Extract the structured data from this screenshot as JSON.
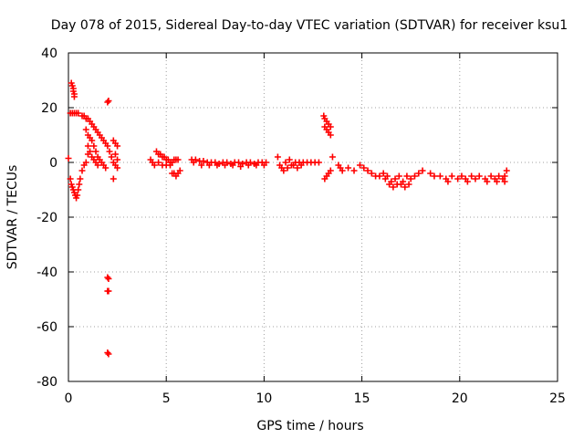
{
  "chart_data": {
    "type": "scatter",
    "title": "Day 078 of 2015, Sidereal Day-to-day VTEC variation (SDTVAR) for receiver ksu1",
    "xlabel": "GPS time / hours",
    "ylabel": "SDTVAR / TECUs",
    "xlim": [
      0,
      25
    ],
    "ylim": [
      -80,
      40
    ],
    "xticks": [
      "0",
      "5",
      "10",
      "15",
      "20",
      "25"
    ],
    "yticks": [
      "40",
      "20",
      "0",
      "-20",
      "-40",
      "-60",
      "-80"
    ],
    "grid": true,
    "marker": "+",
    "color": "#ff0000",
    "series": [
      {
        "name": "SDTVAR",
        "points": [
          [
            0.0,
            1.5
          ],
          [
            0.1,
            18
          ],
          [
            0.2,
            18
          ],
          [
            0.3,
            18
          ],
          [
            0.4,
            18
          ],
          [
            0.5,
            18
          ],
          [
            0.15,
            29
          ],
          [
            0.2,
            28
          ],
          [
            0.25,
            27
          ],
          [
            0.25,
            26
          ],
          [
            0.3,
            25
          ],
          [
            0.3,
            24
          ],
          [
            0.1,
            -6
          ],
          [
            0.15,
            -8
          ],
          [
            0.2,
            -9
          ],
          [
            0.25,
            -10
          ],
          [
            0.3,
            -11
          ],
          [
            0.35,
            -12
          ],
          [
            0.4,
            -13
          ],
          [
            0.45,
            -12
          ],
          [
            0.5,
            -10
          ],
          [
            0.55,
            -8
          ],
          [
            0.6,
            -6
          ],
          [
            0.7,
            -3
          ],
          [
            0.8,
            -1
          ],
          [
            0.9,
            0
          ],
          [
            1.0,
            3
          ],
          [
            0.7,
            17
          ],
          [
            0.8,
            17
          ],
          [
            0.9,
            16
          ],
          [
            1.0,
            16
          ],
          [
            1.1,
            15
          ],
          [
            1.2,
            14
          ],
          [
            1.3,
            13
          ],
          [
            1.4,
            12
          ],
          [
            1.5,
            11
          ],
          [
            1.6,
            10
          ],
          [
            1.7,
            9
          ],
          [
            1.8,
            8
          ],
          [
            1.9,
            7
          ],
          [
            2.0,
            6
          ],
          [
            0.9,
            12
          ],
          [
            1.0,
            10
          ],
          [
            1.1,
            9
          ],
          [
            1.2,
            8
          ],
          [
            1.3,
            6
          ],
          [
            1.4,
            4
          ],
          [
            1.5,
            2
          ],
          [
            1.6,
            1
          ],
          [
            1.7,
            0
          ],
          [
            1.8,
            -1
          ],
          [
            1.9,
            -2
          ],
          [
            1.0,
            6
          ],
          [
            1.1,
            4
          ],
          [
            1.2,
            2
          ],
          [
            1.3,
            1
          ],
          [
            1.4,
            0
          ],
          [
            1.5,
            -1
          ],
          [
            2.0,
            22
          ],
          [
            2.05,
            22.5
          ],
          [
            2.0,
            -42
          ],
          [
            2.05,
            -42.5
          ],
          [
            2.0,
            -47
          ],
          [
            2.05,
            -47
          ],
          [
            2.0,
            -69.5
          ],
          [
            2.05,
            -70
          ],
          [
            2.1,
            4
          ],
          [
            2.2,
            2
          ],
          [
            2.3,
            0
          ],
          [
            2.4,
            -1
          ],
          [
            2.5,
            -2
          ],
          [
            2.3,
            8
          ],
          [
            2.4,
            7
          ],
          [
            2.5,
            6
          ],
          [
            2.4,
            3
          ],
          [
            2.5,
            1
          ],
          [
            2.3,
            -6
          ],
          [
            4.2,
            1
          ],
          [
            4.3,
            0
          ],
          [
            4.4,
            -1
          ],
          [
            4.5,
            4
          ],
          [
            4.6,
            3
          ],
          [
            4.7,
            3
          ],
          [
            4.8,
            2
          ],
          [
            4.9,
            2
          ],
          [
            5.0,
            1
          ],
          [
            5.1,
            1
          ],
          [
            5.2,
            0
          ],
          [
            5.3,
            0
          ],
          [
            5.4,
            1
          ],
          [
            5.5,
            1
          ],
          [
            5.6,
            1
          ],
          [
            4.6,
            0
          ],
          [
            4.8,
            -1
          ],
          [
            5.0,
            -1
          ],
          [
            5.2,
            -1
          ],
          [
            5.3,
            -4
          ],
          [
            5.4,
            -4
          ],
          [
            5.5,
            -5
          ],
          [
            5.6,
            -4
          ],
          [
            5.7,
            -3
          ],
          [
            6.3,
            1
          ],
          [
            6.5,
            1
          ],
          [
            6.7,
            0.5
          ],
          [
            6.9,
            0.5
          ],
          [
            7.1,
            0
          ],
          [
            7.3,
            0
          ],
          [
            7.5,
            0
          ],
          [
            7.7,
            -0.5
          ],
          [
            7.9,
            0
          ],
          [
            8.1,
            0
          ],
          [
            8.3,
            -0.5
          ],
          [
            8.5,
            0
          ],
          [
            8.7,
            0
          ],
          [
            8.9,
            -0.5
          ],
          [
            9.1,
            0
          ],
          [
            9.3,
            0
          ],
          [
            9.5,
            -0.5
          ],
          [
            9.7,
            0
          ],
          [
            9.9,
            0
          ],
          [
            10.1,
            0
          ],
          [
            6.4,
            0
          ],
          [
            6.8,
            -1
          ],
          [
            7.2,
            -1
          ],
          [
            7.6,
            -1
          ],
          [
            8.0,
            -1
          ],
          [
            8.4,
            -1
          ],
          [
            8.8,
            -1.5
          ],
          [
            9.2,
            -1
          ],
          [
            9.6,
            -1
          ],
          [
            10.0,
            -1
          ],
          [
            10.7,
            2
          ],
          [
            10.8,
            -1
          ],
          [
            10.9,
            -2
          ],
          [
            11.0,
            -3
          ],
          [
            11.2,
            -2
          ],
          [
            11.4,
            -1
          ],
          [
            11.6,
            0
          ],
          [
            11.8,
            0
          ],
          [
            12.0,
            0
          ],
          [
            12.2,
            0
          ],
          [
            12.4,
            0
          ],
          [
            12.6,
            0
          ],
          [
            12.8,
            0
          ],
          [
            11.1,
            0
          ],
          [
            11.3,
            1
          ],
          [
            11.5,
            -1
          ],
          [
            11.7,
            -2
          ],
          [
            11.9,
            -1
          ],
          [
            13.05,
            17
          ],
          [
            13.1,
            16
          ],
          [
            13.2,
            15
          ],
          [
            13.3,
            14
          ],
          [
            13.4,
            13
          ],
          [
            13.1,
            13
          ],
          [
            13.2,
            12
          ],
          [
            13.3,
            11
          ],
          [
            13.4,
            10
          ],
          [
            13.1,
            -6
          ],
          [
            13.2,
            -5
          ],
          [
            13.3,
            -4
          ],
          [
            13.4,
            -3
          ],
          [
            13.5,
            2
          ],
          [
            13.8,
            -1
          ],
          [
            13.9,
            -2
          ],
          [
            14.0,
            -3
          ],
          [
            14.3,
            -2
          ],
          [
            14.6,
            -3
          ],
          [
            14.9,
            -1
          ],
          [
            15.1,
            -2
          ],
          [
            15.3,
            -3
          ],
          [
            15.5,
            -4
          ],
          [
            15.7,
            -5
          ],
          [
            15.9,
            -5
          ],
          [
            16.1,
            -4
          ],
          [
            16.3,
            -5
          ],
          [
            16.5,
            -7
          ],
          [
            16.7,
            -6
          ],
          [
            16.9,
            -5
          ],
          [
            17.1,
            -7
          ],
          [
            17.3,
            -5
          ],
          [
            17.5,
            -6
          ],
          [
            17.7,
            -5
          ],
          [
            17.9,
            -4
          ],
          [
            18.1,
            -3
          ],
          [
            18.5,
            -4
          ],
          [
            18.7,
            -5
          ],
          [
            19.0,
            -5
          ],
          [
            19.3,
            -6
          ],
          [
            19.6,
            -5
          ],
          [
            19.9,
            -6
          ],
          [
            20.1,
            -5
          ],
          [
            20.3,
            -6
          ],
          [
            20.6,
            -5
          ],
          [
            20.8,
            -6
          ],
          [
            21.0,
            -5
          ],
          [
            21.3,
            -6
          ],
          [
            21.6,
            -5
          ],
          [
            21.8,
            -6
          ],
          [
            22.0,
            -5
          ],
          [
            22.2,
            -6
          ],
          [
            22.3,
            -5
          ],
          [
            22.4,
            -3
          ],
          [
            16.2,
            -6
          ],
          [
            16.4,
            -8
          ],
          [
            16.6,
            -9
          ],
          [
            16.8,
            -8
          ],
          [
            17.0,
            -8
          ],
          [
            17.2,
            -9
          ],
          [
            17.4,
            -8
          ],
          [
            19.4,
            -7
          ],
          [
            20.4,
            -7
          ],
          [
            21.4,
            -7
          ],
          [
            21.9,
            -7
          ],
          [
            22.3,
            -7
          ]
        ]
      }
    ]
  }
}
